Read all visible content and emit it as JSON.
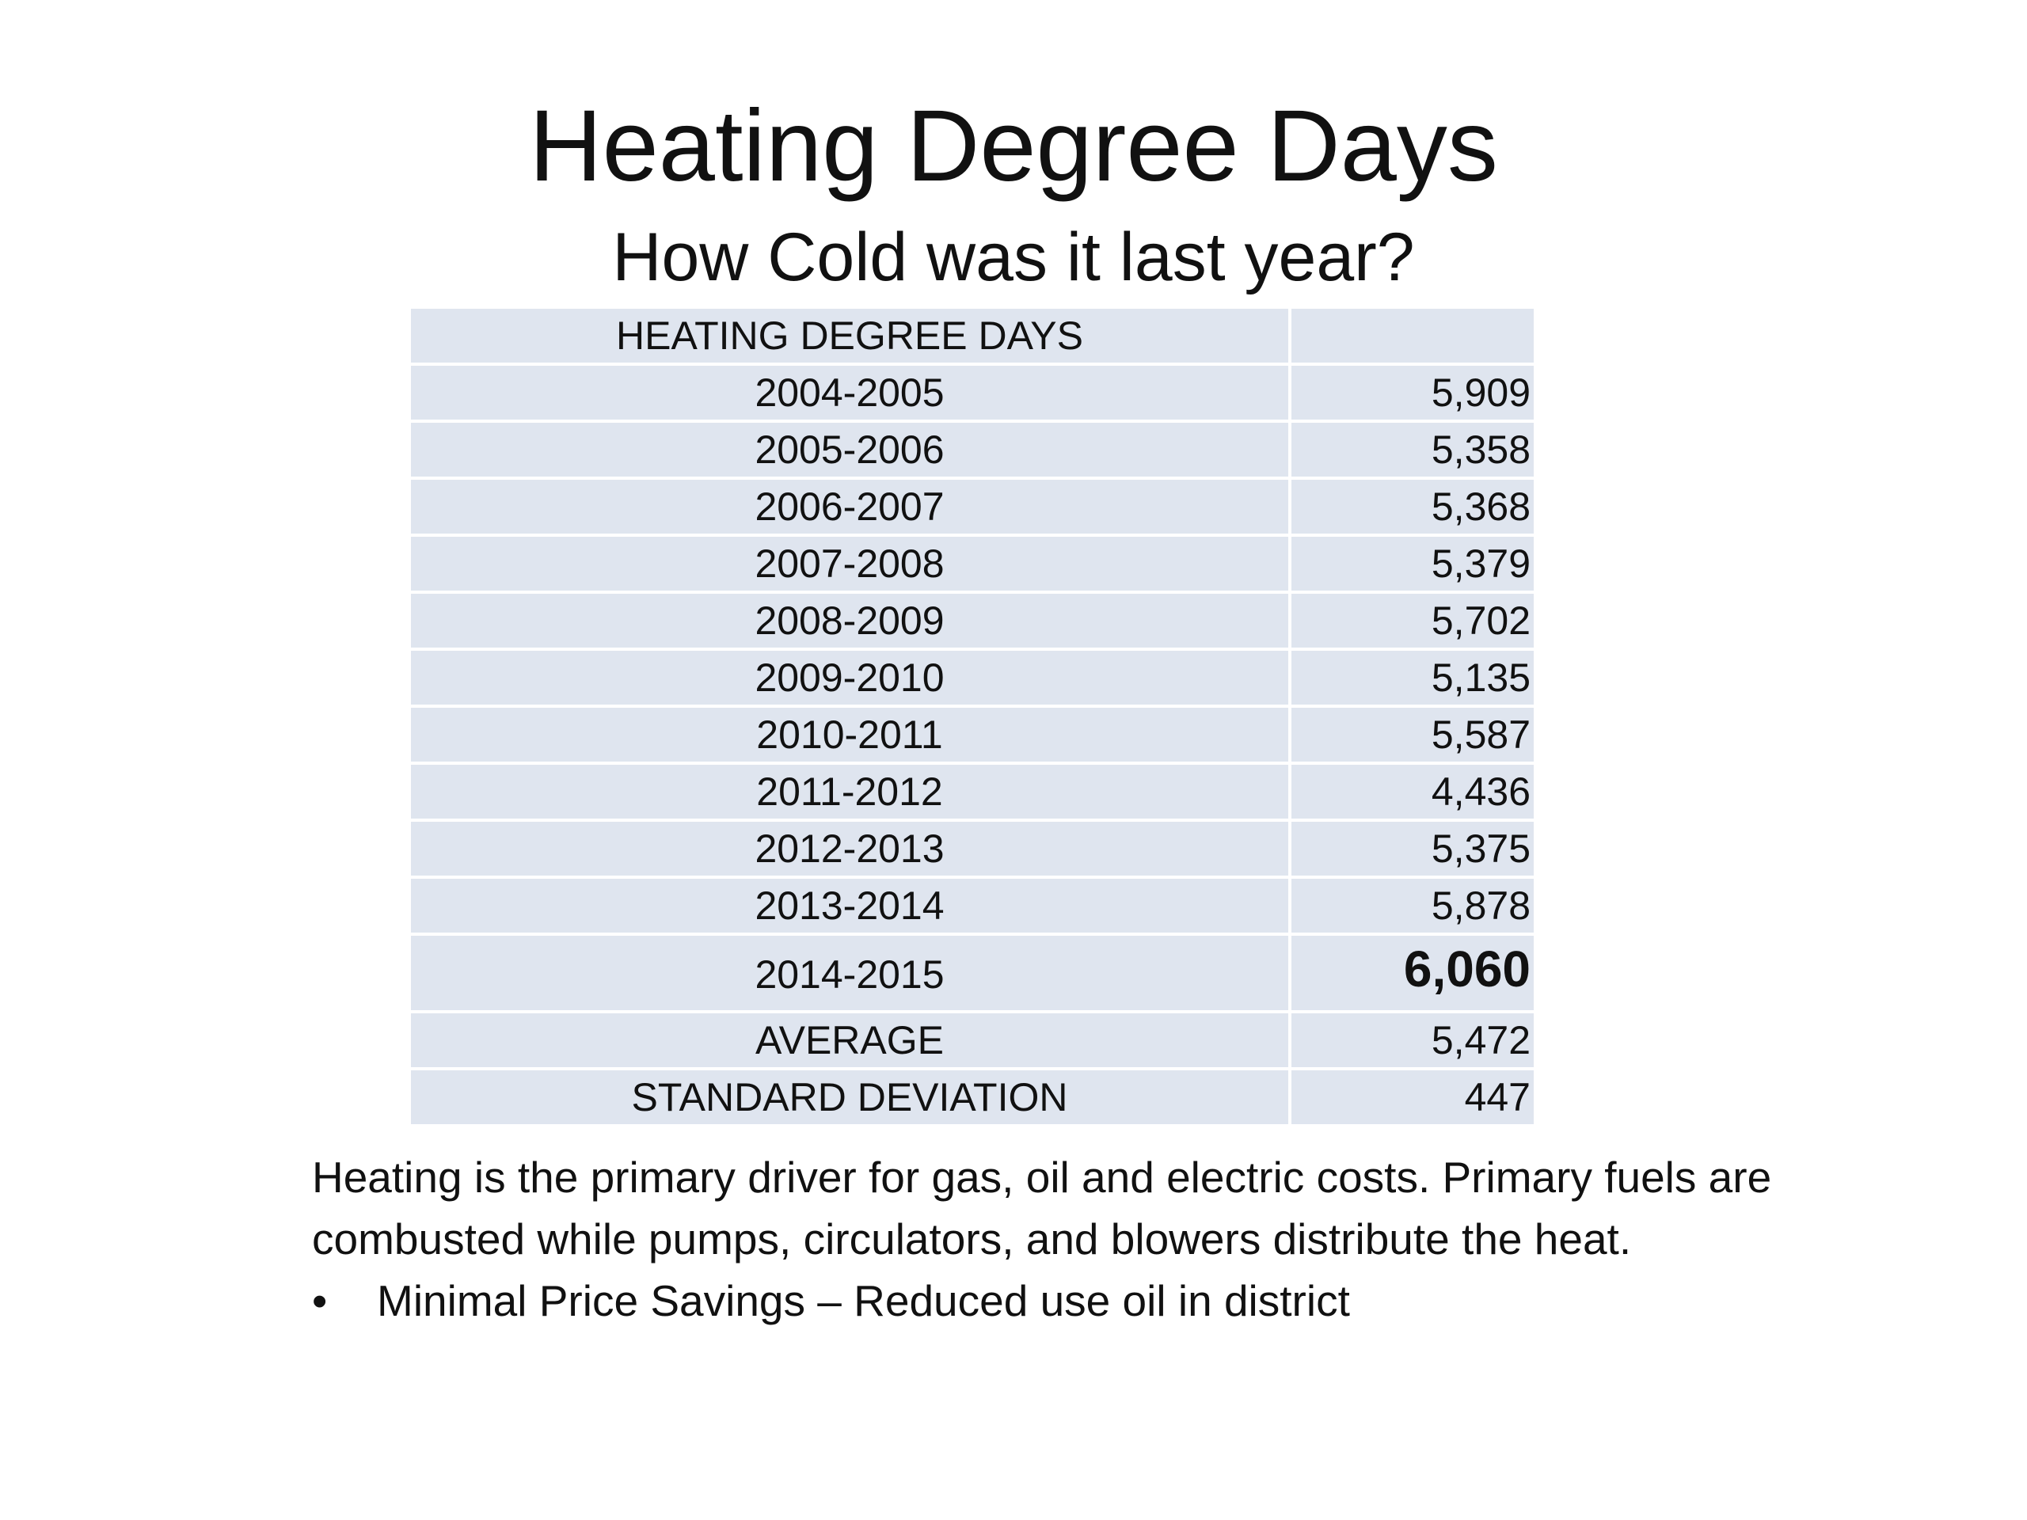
{
  "header": {
    "title": "Heating Degree Days",
    "subtitle": "How Cold was it last year?"
  },
  "table": {
    "header": {
      "label": "HEATING DEGREE DAYS"
    },
    "rows": [
      [
        "2004-2005",
        "5,909"
      ],
      [
        "2005-2006",
        "5,358"
      ],
      [
        "2006-2007",
        "5,368"
      ],
      [
        "2007-2008",
        "5,379"
      ],
      [
        "2008-2009",
        "5,702"
      ],
      [
        "2009-2010",
        "5,135"
      ],
      [
        "2010-2011",
        "5,587"
      ],
      [
        "2011-2012",
        "4,436"
      ],
      [
        "2012-2013",
        "5,375"
      ],
      [
        "2013-2014",
        "5,878"
      ],
      [
        "2014-2015",
        "6,060"
      ],
      [
        "AVERAGE",
        "5,472"
      ],
      [
        "STANDARD DEVIATION",
        "447"
      ]
    ]
  },
  "body": {
    "paragraph": "Heating is the primary driver for gas, oil and electric costs.  Primary fuels are combusted while pumps, circulators, and blowers distribute the heat.",
    "bullets": [
      "Minimal Price Savings – Reduced use oil in district"
    ]
  }
}
